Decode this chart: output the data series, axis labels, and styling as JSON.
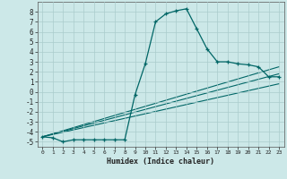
{
  "title": "",
  "xlabel": "Humidex (Indice chaleur)",
  "xlim": [
    -0.5,
    23.5
  ],
  "ylim": [
    -5.5,
    9.0
  ],
  "xticks": [
    0,
    1,
    2,
    3,
    4,
    5,
    6,
    7,
    8,
    9,
    10,
    11,
    12,
    13,
    14,
    15,
    16,
    17,
    18,
    19,
    20,
    21,
    22,
    23
  ],
  "yticks": [
    -5,
    -4,
    -3,
    -2,
    -1,
    0,
    1,
    2,
    3,
    4,
    5,
    6,
    7,
    8
  ],
  "bg_color": "#cce8e8",
  "grid_color": "#aacccc",
  "line_color": "#006666",
  "line1_x": [
    0,
    1,
    2,
    3,
    4,
    5,
    6,
    7,
    8,
    9,
    10,
    11,
    12,
    13,
    14,
    15,
    16,
    17,
    18,
    19,
    20,
    21,
    22,
    23
  ],
  "line1_y": [
    -4.5,
    -4.6,
    -5.0,
    -4.8,
    -4.8,
    -4.8,
    -4.8,
    -4.8,
    -4.8,
    -0.3,
    2.8,
    7.0,
    7.8,
    8.1,
    8.3,
    6.3,
    4.3,
    3.0,
    3.0,
    2.8,
    2.7,
    2.5,
    1.5,
    1.5
  ],
  "line2_x": [
    0,
    23
  ],
  "line2_y": [
    -4.5,
    1.8
  ],
  "line3_x": [
    0,
    23
  ],
  "line3_y": [
    -4.5,
    2.5
  ],
  "line4_x": [
    0,
    23
  ],
  "line4_y": [
    -4.5,
    0.8
  ]
}
